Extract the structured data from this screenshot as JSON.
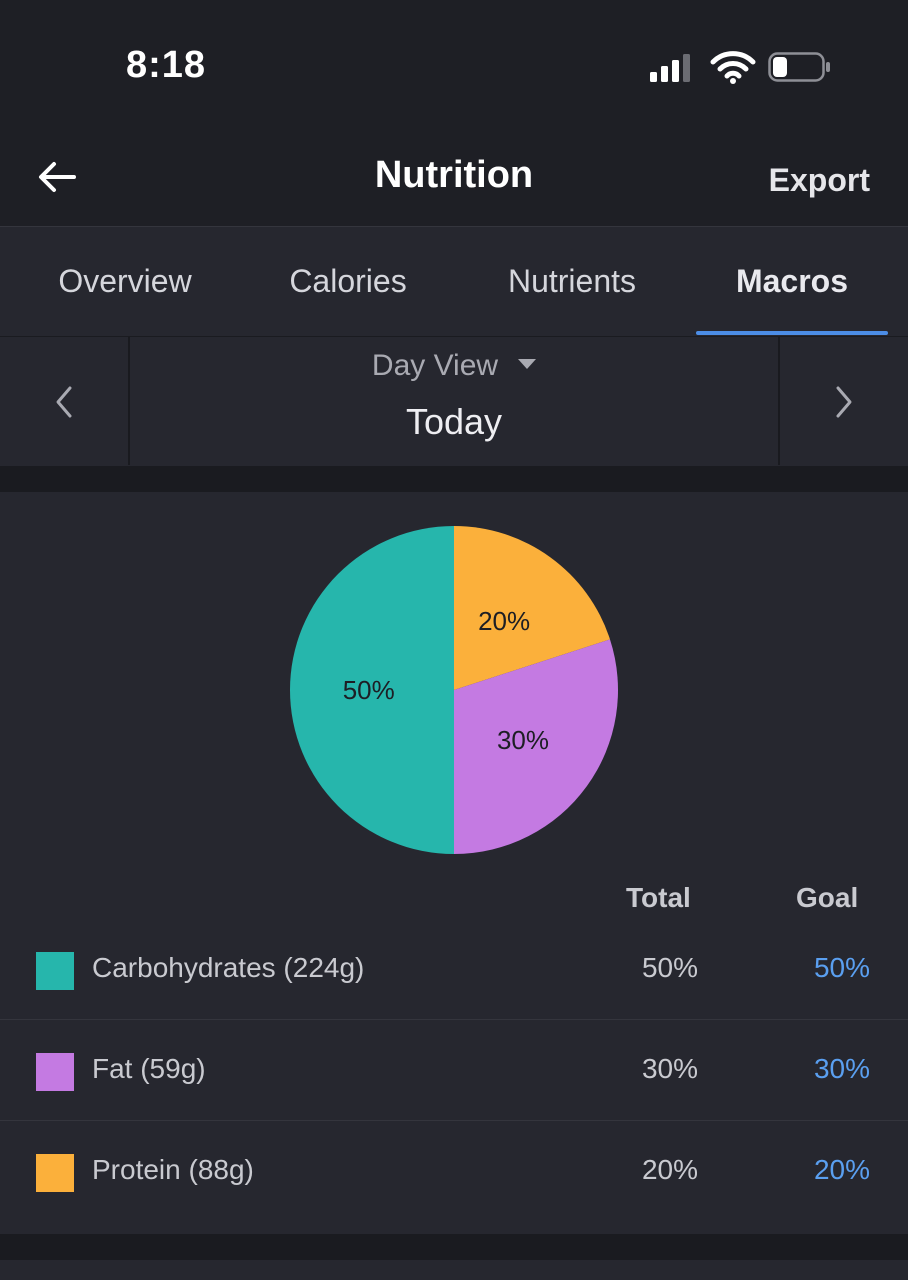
{
  "status": {
    "time": "8:18"
  },
  "header": {
    "title": "Nutrition",
    "export_label": "Export"
  },
  "tabs": [
    {
      "label": "Overview",
      "active": false
    },
    {
      "label": "Calories",
      "active": false
    },
    {
      "label": "Nutrients",
      "active": false
    },
    {
      "label": "Macros",
      "active": true
    }
  ],
  "day_nav": {
    "view_label": "Day View",
    "day_label": "Today"
  },
  "colors": {
    "carbs": "#26b6ac",
    "fat": "#c47ae2",
    "protein": "#fbb03b",
    "accent": "#4c8de6",
    "goal_text": "#5a9ff0"
  },
  "chart_data": {
    "type": "pie",
    "slices": [
      {
        "label": "Protein",
        "value": 20,
        "display": "20%",
        "color": "#fbb03b"
      },
      {
        "label": "Fat",
        "value": 30,
        "display": "30%",
        "color": "#c47ae2"
      },
      {
        "label": "Carbohydrates",
        "value": 50,
        "display": "50%",
        "color": "#26b6ac"
      }
    ]
  },
  "table": {
    "headers": {
      "total": "Total",
      "goal": "Goal"
    },
    "rows": [
      {
        "label": "Carbohydrates (224g)",
        "total": "50%",
        "goal": "50%",
        "color": "#26b6ac"
      },
      {
        "label": "Fat (59g)",
        "total": "30%",
        "goal": "30%",
        "color": "#c47ae2"
      },
      {
        "label": "Protein (88g)",
        "total": "20%",
        "goal": "20%",
        "color": "#fbb03b"
      }
    ]
  }
}
